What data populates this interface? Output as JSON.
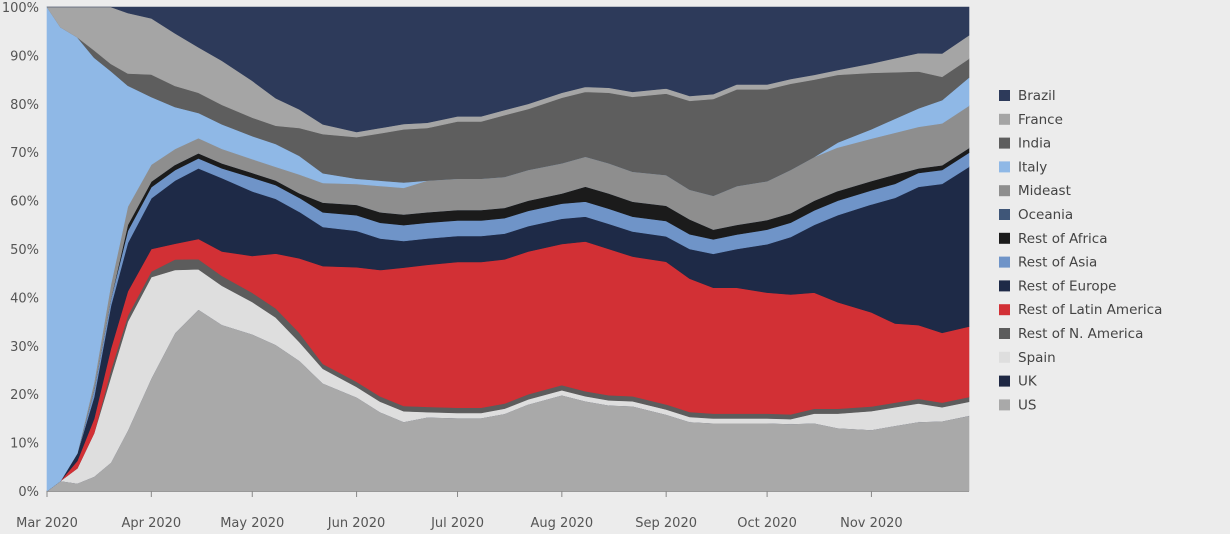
{
  "chart_data": {
    "type": "area",
    "stacked": true,
    "normalized": true,
    "title": "",
    "xlabel": "",
    "ylabel": "",
    "x_range": [
      "2020-03-01",
      "2020-11-30"
    ],
    "ylim": [
      0,
      100
    ],
    "y_ticks": [
      "0%",
      "10%",
      "20%",
      "30%",
      "40%",
      "50%",
      "60%",
      "70%",
      "80%",
      "90%",
      "100%"
    ],
    "x_ticks": [
      {
        "date": "2020-03-01",
        "label": "Mar 2020"
      },
      {
        "date": "2020-04-01",
        "label": "Apr 2020"
      },
      {
        "date": "2020-05-01",
        "label": "May 2020"
      },
      {
        "date": "2020-06-01",
        "label": "Jun 2020"
      },
      {
        "date": "2020-07-01",
        "label": "Jul 2020"
      },
      {
        "date": "2020-08-01",
        "label": "Aug 2020"
      },
      {
        "date": "2020-09-01",
        "label": "Sep 2020"
      },
      {
        "date": "2020-10-01",
        "label": "Oct 2020"
      },
      {
        "date": "2020-11-01",
        "label": "Nov 2020"
      }
    ],
    "legend_position": "right",
    "x": [
      "2020-03-01",
      "2020-03-05",
      "2020-03-10",
      "2020-03-15",
      "2020-03-20",
      "2020-03-25",
      "2020-04-01",
      "2020-04-08",
      "2020-04-15",
      "2020-04-22",
      "2020-05-01",
      "2020-05-08",
      "2020-05-15",
      "2020-05-22",
      "2020-06-01",
      "2020-06-08",
      "2020-06-15",
      "2020-06-22",
      "2020-07-01",
      "2020-07-08",
      "2020-07-15",
      "2020-07-22",
      "2020-08-01",
      "2020-08-08",
      "2020-08-15",
      "2020-08-22",
      "2020-09-01",
      "2020-09-08",
      "2020-09-15",
      "2020-09-22",
      "2020-10-01",
      "2020-10-08",
      "2020-10-15",
      "2020-10-22",
      "2020-11-01",
      "2020-11-08",
      "2020-11-15",
      "2020-11-22",
      "2020-11-30"
    ],
    "series": [
      {
        "name": "US",
        "color": "#a9a9a9",
        "values": [
          0,
          1,
          1,
          2,
          4,
          10,
          20,
          30,
          36,
          34,
          34,
          32,
          28,
          22,
          18,
          15,
          13,
          14,
          14,
          14,
          15,
          17,
          19,
          18,
          17,
          17,
          15,
          14,
          14,
          14,
          14,
          14,
          14,
          13,
          13,
          14,
          15,
          15,
          16
        ]
      },
      {
        "name": "UK",
        "color": "#1f2844",
        "values": [
          0,
          0,
          0,
          0,
          0,
          0,
          0,
          0,
          0,
          0,
          0,
          0,
          0,
          0,
          0,
          0,
          0,
          0,
          0,
          0,
          0,
          0,
          0,
          0,
          0,
          0,
          0,
          0,
          0,
          0,
          0,
          0,
          0,
          0,
          0,
          0,
          0,
          0,
          0
        ]
      },
      {
        "name": "Spain",
        "color": "#dedede",
        "values": [
          0,
          0,
          2,
          6,
          12,
          18,
          18,
          12,
          8,
          8,
          7,
          6,
          4,
          3,
          2,
          2,
          2,
          1,
          1,
          1,
          1,
          1,
          1,
          1,
          1,
          1,
          1,
          1,
          1,
          1,
          1,
          1,
          2,
          3,
          4,
          4,
          4,
          3,
          3
        ]
      },
      {
        "name": "Rest of N. America",
        "color": "#5c5c5c",
        "values": [
          0,
          0,
          0,
          0,
          1,
          1,
          1,
          2,
          2,
          2,
          2,
          2,
          2,
          1,
          1,
          1,
          1,
          1,
          1,
          1,
          1,
          1,
          1,
          1,
          1,
          1,
          1,
          1,
          1,
          1,
          1,
          1,
          1,
          1,
          1,
          1,
          1,
          1,
          1
        ]
      },
      {
        "name": "Rest of Latin America",
        "color": "#d23035",
        "values": [
          0,
          0,
          1,
          2,
          3,
          4,
          4,
          3,
          4,
          5,
          8,
          12,
          16,
          20,
          22,
          24,
          26,
          27,
          28,
          28,
          28,
          28,
          28,
          30,
          29,
          28,
          28,
          27,
          26,
          26,
          25,
          25,
          24,
          22,
          20,
          17,
          16,
          15,
          15
        ]
      },
      {
        "name": "Rest of Europe",
        "color": "#1e2a47",
        "values": [
          0,
          0,
          1,
          3,
          6,
          8,
          9,
          12,
          14,
          15,
          14,
          12,
          10,
          8,
          7,
          6,
          5,
          5,
          5,
          5,
          5,
          5,
          5,
          5,
          5,
          5,
          5,
          6,
          7,
          8,
          10,
          12,
          14,
          18,
          23,
          27,
          30,
          32,
          34
        ]
      },
      {
        "name": "Rest of Asia",
        "color": "#6f94c8",
        "values": [
          0,
          0,
          0,
          1,
          1,
          2,
          2,
          2,
          2,
          2,
          3,
          3,
          3,
          3,
          3,
          3,
          3,
          3,
          3,
          3,
          3,
          3,
          3,
          3,
          3,
          3,
          3,
          3,
          3,
          3,
          3,
          3,
          3,
          3,
          3,
          3,
          3,
          3,
          3
        ]
      },
      {
        "name": "Rest of Africa",
        "color": "#1b1b1b",
        "values": [
          0,
          0,
          0,
          0,
          0,
          1,
          1,
          1,
          1,
          1,
          1,
          1,
          1,
          2,
          2,
          2,
          2,
          2,
          2,
          2,
          2,
          2,
          2,
          3,
          3,
          3,
          3,
          3,
          2,
          2,
          2,
          2,
          2,
          2,
          2,
          2,
          1,
          1,
          1
        ]
      },
      {
        "name": "Oceania",
        "color": "#3f5678",
        "values": [
          0,
          0,
          0,
          0,
          0,
          0,
          0,
          0,
          0,
          0,
          0,
          0,
          0,
          0,
          0,
          0,
          0,
          0,
          0,
          0,
          0,
          0,
          0,
          0,
          0,
          0,
          0,
          0,
          0,
          0,
          0,
          0,
          0,
          0,
          0,
          0,
          0,
          0,
          0
        ]
      },
      {
        "name": "Mideast",
        "color": "#8e8e8e",
        "values": [
          0,
          0,
          0,
          1,
          2,
          3,
          3,
          3,
          3,
          3,
          3,
          3,
          4,
          4,
          4,
          5,
          5,
          6,
          6,
          6,
          6,
          6,
          6,
          6,
          6,
          6,
          6,
          6,
          7,
          8,
          8,
          9,
          9,
          9,
          9,
          9,
          9,
          9,
          9
        ]
      },
      {
        "name": "Italy",
        "color": "#8fb8e6",
        "values": [
          6,
          45,
          55,
          45,
          30,
          20,
          12,
          8,
          5,
          5,
          5,
          5,
          4,
          2,
          1,
          1,
          1,
          0,
          0,
          0,
          0,
          0,
          0,
          0,
          0,
          0,
          0,
          0,
          0,
          0,
          0,
          0,
          0,
          1,
          2,
          3,
          4,
          5,
          6
        ]
      },
      {
        "name": "India",
        "color": "#5e5e5e",
        "values": [
          0,
          0,
          0,
          1,
          1,
          2,
          4,
          4,
          4,
          4,
          4,
          4,
          6,
          8,
          8,
          9,
          10,
          10,
          11,
          11,
          12,
          12,
          13,
          13,
          14,
          15,
          16,
          18,
          20,
          20,
          19,
          18,
          16,
          14,
          12,
          10,
          8,
          5,
          4
        ]
      },
      {
        "name": "France",
        "color": "#a5a5a5",
        "values": [
          0,
          2,
          4,
          6,
          8,
          10,
          10,
          10,
          9,
          9,
          8,
          6,
          4,
          2,
          1,
          1,
          1,
          1,
          1,
          1,
          1,
          1,
          1,
          1,
          1,
          1,
          1,
          1,
          1,
          1,
          1,
          1,
          1,
          1,
          2,
          3,
          4,
          5,
          5
        ]
      },
      {
        "name": "Brazil",
        "color": "#2d3a5a",
        "values": [
          0,
          0,
          0,
          0,
          0,
          1,
          2,
          5,
          8,
          11,
          16,
          20,
          22,
          24,
          24,
          23,
          22,
          22,
          21,
          21,
          20,
          19,
          17,
          16,
          16,
          17,
          16,
          18,
          18,
          16,
          16,
          15,
          14,
          13,
          12,
          11,
          10,
          10,
          6
        ]
      }
    ]
  }
}
